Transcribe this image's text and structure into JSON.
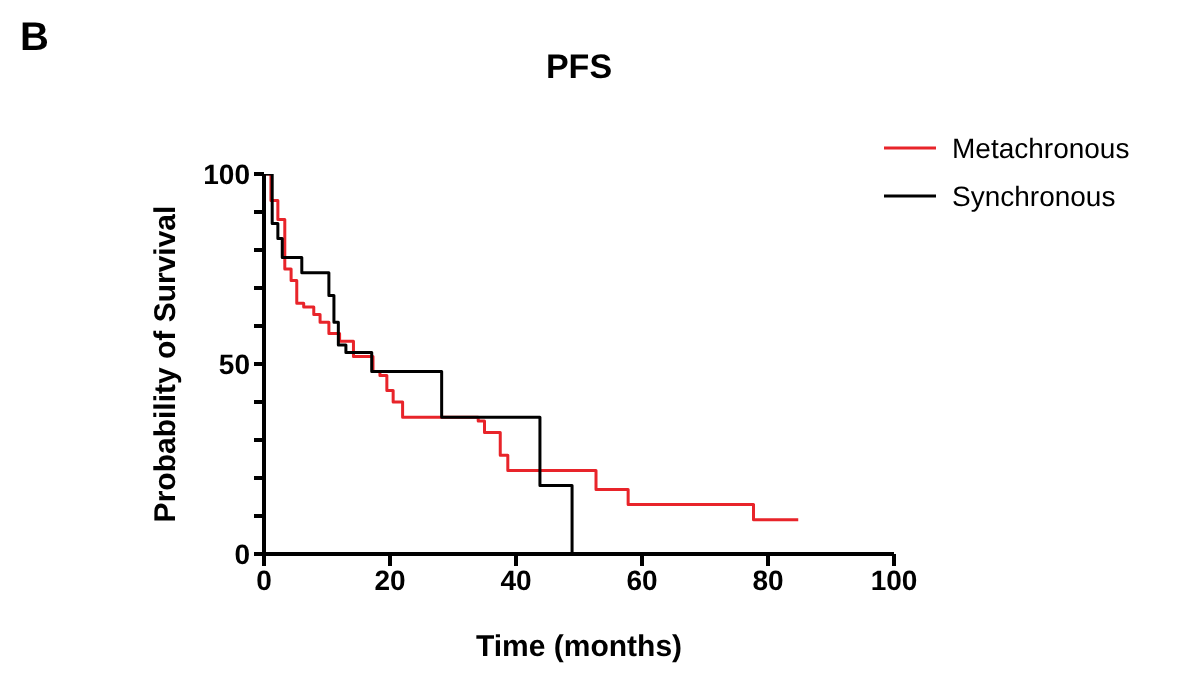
{
  "chart_data": {
    "type": "step",
    "title": "PFS",
    "xlabel": "Time (months)",
    "ylabel": "Probability of Survival",
    "annotations": [
      "B"
    ],
    "xlim": [
      0,
      100
    ],
    "xticks": [
      0,
      20,
      40,
      60,
      80,
      100
    ],
    "ylim": [
      0,
      100
    ],
    "yticks": [
      0,
      {
        "value": 10,
        "label": null
      },
      {
        "value": 20,
        "label": null
      },
      {
        "value": 30,
        "label": null
      },
      {
        "value": 40,
        "label": null
      },
      50,
      {
        "value": 60,
        "label": null
      },
      {
        "value": 70,
        "label": null
      },
      {
        "value": 80,
        "label": null
      },
      {
        "value": 90,
        "label": null
      },
      100
    ],
    "legend": "top right",
    "marker": "none",
    "line_style": "solid",
    "series": [
      {
        "name": "Metachronous",
        "color": "#e8242a",
        "x": [
          0,
          1.1,
          2.2,
          3.3,
          4.3,
          5.2,
          6.3,
          7.9,
          8.9,
          10.3,
          12,
          14.2,
          17.3,
          18.4,
          19.5,
          20.5,
          22,
          34,
          35,
          37.5,
          38.7,
          52.7,
          57.8,
          77.7,
          84.8
        ],
        "values": [
          100,
          93,
          88,
          75,
          72,
          66,
          65,
          63,
          61,
          58,
          56,
          52,
          48,
          47,
          43,
          40,
          36,
          35,
          32,
          26,
          22,
          17,
          13,
          9,
          9
        ]
      },
      {
        "name": "Synchronous",
        "color": "#000000",
        "x": [
          0,
          1.3,
          2.2,
          2.9,
          6,
          10.3,
          11.1,
          11.8,
          13,
          17.1,
          28.2,
          43.8,
          48.9
        ],
        "values": [
          100,
          87,
          83,
          78,
          74,
          68,
          61,
          55,
          53,
          48,
          36,
          18,
          0
        ]
      }
    ]
  }
}
